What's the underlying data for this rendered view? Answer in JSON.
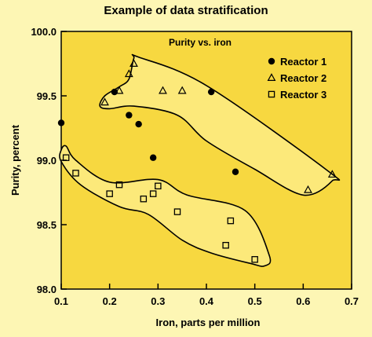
{
  "chart_data": {
    "type": "scatter",
    "title": "Example of data stratification",
    "subtitle": "Purity vs. iron",
    "xlabel": "Iron, parts per million",
    "ylabel": "Purity, percent",
    "xlim": [
      0.1,
      0.7
    ],
    "ylim": [
      98.0,
      100.0
    ],
    "xticks": [
      "0.1",
      "0.2",
      "0.3",
      "0.4",
      "0.5",
      "0.6",
      "0.7"
    ],
    "yticks": [
      "98.0",
      "98.5",
      "99.0",
      "99.5",
      "100.0"
    ],
    "legend_position": "top-right",
    "colors": {
      "background": "#fdf6b4",
      "plot": "#f7d840",
      "region": "#fce97a",
      "marker": "#000000"
    },
    "series": [
      {
        "name": "Reactor 1",
        "marker": "filled-circle",
        "points": [
          [
            0.1,
            99.29
          ],
          [
            0.21,
            99.53
          ],
          [
            0.24,
            99.35
          ],
          [
            0.26,
            99.28
          ],
          [
            0.29,
            99.02
          ],
          [
            0.41,
            99.53
          ],
          [
            0.46,
            98.91
          ]
        ]
      },
      {
        "name": "Reactor 2",
        "marker": "open-triangle",
        "points": [
          [
            0.19,
            99.45
          ],
          [
            0.22,
            99.54
          ],
          [
            0.24,
            99.67
          ],
          [
            0.25,
            99.75
          ],
          [
            0.31,
            99.54
          ],
          [
            0.35,
            99.54
          ],
          [
            0.61,
            98.77
          ],
          [
            0.66,
            98.89
          ]
        ]
      },
      {
        "name": "Reactor 3",
        "marker": "open-square",
        "points": [
          [
            0.11,
            99.02
          ],
          [
            0.13,
            98.9
          ],
          [
            0.2,
            98.74
          ],
          [
            0.22,
            98.81
          ],
          [
            0.27,
            98.7
          ],
          [
            0.29,
            98.74
          ],
          [
            0.3,
            98.8
          ],
          [
            0.34,
            98.6
          ],
          [
            0.44,
            98.34
          ],
          [
            0.45,
            98.53
          ],
          [
            0.5,
            98.23
          ]
        ]
      }
    ],
    "regions": [
      {
        "name": "Reactor 2",
        "outline": [
          [
            0.26,
            99.8
          ],
          [
            0.4,
            99.58
          ],
          [
            0.65,
            98.92
          ],
          [
            0.66,
            98.84
          ],
          [
            0.6,
            98.73
          ],
          [
            0.5,
            98.93
          ],
          [
            0.4,
            99.15
          ],
          [
            0.34,
            99.35
          ],
          [
            0.25,
            99.42
          ],
          [
            0.2,
            99.4
          ],
          [
            0.18,
            99.42
          ],
          [
            0.19,
            99.5
          ],
          [
            0.22,
            99.57
          ],
          [
            0.24,
            99.63
          ],
          [
            0.25,
            99.79
          ]
        ]
      },
      {
        "name": "Reactor 3",
        "outline": [
          [
            0.11,
            99.11
          ],
          [
            0.13,
            99.0
          ],
          [
            0.2,
            98.83
          ],
          [
            0.3,
            98.85
          ],
          [
            0.36,
            98.73
          ],
          [
            0.48,
            98.61
          ],
          [
            0.53,
            98.26
          ],
          [
            0.52,
            98.18
          ],
          [
            0.49,
            98.2
          ],
          [
            0.41,
            98.28
          ],
          [
            0.35,
            98.38
          ],
          [
            0.28,
            98.58
          ],
          [
            0.22,
            98.64
          ],
          [
            0.14,
            98.81
          ],
          [
            0.1,
            98.99
          ],
          [
            0.1,
            99.08
          ]
        ]
      }
    ]
  }
}
